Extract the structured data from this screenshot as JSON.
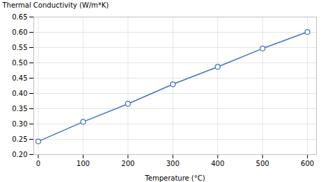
{
  "chart_data": {
    "type": "line",
    "xlabel": "Temperature (°C)",
    "ylabel": "Thermal Conductivity (W/m*K)",
    "x": [
      0,
      100,
      200,
      300,
      400,
      500,
      600
    ],
    "values": [
      0.243,
      0.307,
      0.366,
      0.43,
      0.487,
      0.547,
      0.601
    ],
    "color": "#4472C4",
    "marker": "circle",
    "xlim": [
      -10,
      620
    ],
    "ylim": [
      0.2,
      0.65
    ],
    "xticks": [
      0,
      100,
      200,
      300,
      400,
      500,
      600
    ],
    "yticks": [
      {
        "value": 0.2,
        "label": "0.20"
      },
      0.25,
      {
        "value": 0.3,
        "label": "0.30"
      },
      0.35,
      {
        "value": 0.4,
        "label": "0.40"
      },
      0.45,
      {
        "value": 0.5,
        "label": "0.50"
      },
      0.55,
      {
        "value": 0.6,
        "label": "0.60"
      },
      0.65
    ],
    "grid": true
  }
}
